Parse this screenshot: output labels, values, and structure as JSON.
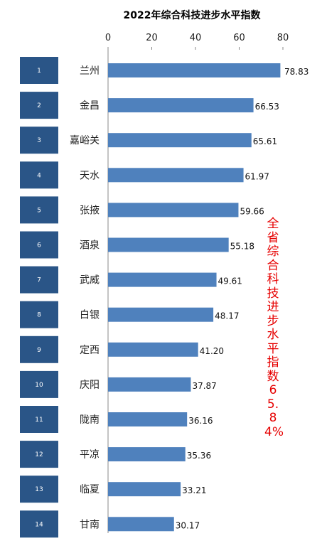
{
  "chart_data": {
    "type": "bar",
    "orientation": "horizontal",
    "title": "2022年综合科技进步水平指数",
    "categories": [
      "兰州",
      "金昌",
      "嘉峪关",
      "天水",
      "张掖",
      "酒泉",
      "武威",
      "白银",
      "定西",
      "庆阳",
      "陇南",
      "平凉",
      "临夏",
      "甘南"
    ],
    "values": [
      78.83,
      66.53,
      65.61,
      61.97,
      59.66,
      55.18,
      49.61,
      48.17,
      41.2,
      37.87,
      36.16,
      35.36,
      33.21,
      30.17
    ],
    "value_labels": [
      "78.83",
      "66.53",
      "65.61",
      "61.97",
      "59.66",
      "55.18",
      "49.61",
      "48.17",
      "41.20",
      "37.87",
      "36.16",
      "35.36",
      "33.21",
      "30.17"
    ],
    "ranks": [
      "1",
      "2",
      "3",
      "4",
      "5",
      "6",
      "7",
      "8",
      "9",
      "10",
      "11",
      "12",
      "13",
      "14"
    ],
    "xlim": [
      0,
      80
    ],
    "xticks": [
      "0",
      "20",
      "40",
      "60",
      "80"
    ],
    "x_axis_position": "top",
    "grid": false,
    "bar_color": "#4f81bd",
    "rank_box_color": "#2a5587",
    "annotation": "全省综合科技进步水平指数65.84%",
    "annotation_color": "#e60000"
  }
}
